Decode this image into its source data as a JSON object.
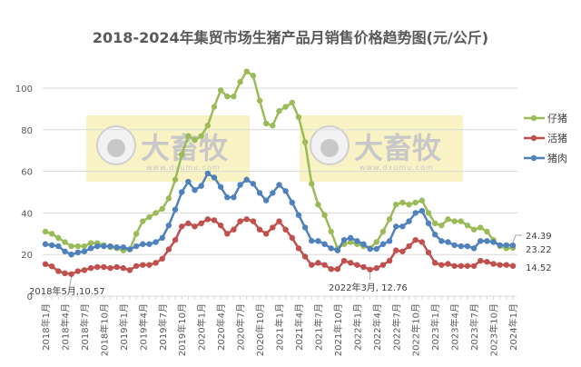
{
  "chart_data": {
    "type": "line",
    "title": "2018-2024年集贸市场生猪产品月销售价格趋势图(元/公斤)",
    "xlabel": "",
    "ylabel": "",
    "ylim": [
      0,
      120
    ],
    "yticks": [
      0,
      20,
      40,
      60,
      80,
      100
    ],
    "grid": true,
    "legend": "right",
    "x_start": "2018-01",
    "x_end": "2024-01",
    "x_tick_labels": [
      "2018年1月",
      "2018年4月",
      "2018年7月",
      "2018年10月",
      "2019年1月",
      "2019年4月",
      "2019年7月",
      "2019年10月",
      "2020年1月",
      "2020年4月",
      "2020年7月",
      "2020年10月",
      "2021年1月",
      "2021年4月",
      "2021年7月",
      "2021年10月",
      "2022年1月",
      "2022年4月",
      "2022年7月",
      "2022年10月",
      "2023年1月",
      "2023年4月",
      "2023年7月",
      "2023年10月",
      "2024年1月"
    ],
    "series": [
      {
        "name": "仔猪",
        "color": "#9bbb59",
        "values": [
          31,
          30,
          28,
          26,
          24,
          24,
          24,
          25.5,
          25.5,
          24.5,
          23.5,
          23,
          22,
          22.5,
          30,
          36,
          38,
          40,
          42,
          47,
          56,
          68,
          77,
          75,
          77,
          82,
          91,
          99,
          96,
          96,
          103,
          108,
          106,
          94,
          83,
          82,
          89,
          91,
          93,
          86,
          74,
          54,
          44,
          39,
          31,
          23,
          25,
          26,
          25,
          24,
          23,
          26,
          31,
          37,
          44,
          45,
          44,
          45,
          46,
          40,
          35,
          34,
          37,
          36,
          36,
          34,
          32,
          33,
          31,
          27,
          24,
          23,
          23.22
        ]
      },
      {
        "name": "活猪",
        "color": "#c0504d",
        "values": [
          15.4,
          14.3,
          12,
          11,
          10.57,
          12,
          12.5,
          13.5,
          14,
          14,
          13.5,
          14,
          13.5,
          12.5,
          14.5,
          15,
          15,
          16,
          18,
          22.5,
          27,
          33.5,
          35,
          33.5,
          35,
          37,
          36.5,
          34,
          30,
          32,
          36,
          37,
          36,
          32,
          30,
          33,
          36,
          32,
          28,
          23,
          19,
          15,
          16,
          15,
          13,
          13,
          17,
          16,
          15,
          14,
          12.76,
          13.5,
          15,
          17,
          22,
          21.5,
          24,
          27,
          26,
          21,
          16,
          15,
          15.5,
          14.5,
          14.5,
          14.5,
          14.5,
          17,
          16.5,
          15.5,
          15,
          15,
          14.52
        ]
      },
      {
        "name": "猪肉",
        "color": "#4f81bd",
        "values": [
          25,
          24.5,
          24,
          21.5,
          20,
          21,
          21.5,
          23,
          24,
          24,
          24,
          23.5,
          23.5,
          22.5,
          24,
          25,
          25,
          26,
          28,
          34,
          41.6,
          50,
          55,
          51,
          53,
          59,
          57,
          52.5,
          47.5,
          47.5,
          53.5,
          56,
          54,
          49.6,
          46,
          49.6,
          53.5,
          50.5,
          45,
          39,
          33,
          26.6,
          26.5,
          25,
          23,
          22,
          27,
          28,
          26.5,
          25,
          22.7,
          22.7,
          25,
          26.5,
          33.5,
          33.5,
          36,
          40,
          41,
          35,
          29.6,
          26.5,
          26,
          24.5,
          24,
          24,
          23,
          26.5,
          26.5,
          26,
          24.5,
          24.5,
          24.39
        ]
      }
    ],
    "annotations": [
      "2018年5月,10.57",
      "2022年3月, 12.76"
    ],
    "end_labels": [
      "24.39",
      "23.22",
      "14.52"
    ]
  },
  "watermark": {
    "logo_text": "大畜牧",
    "url_text": "www.dxumu.com"
  }
}
